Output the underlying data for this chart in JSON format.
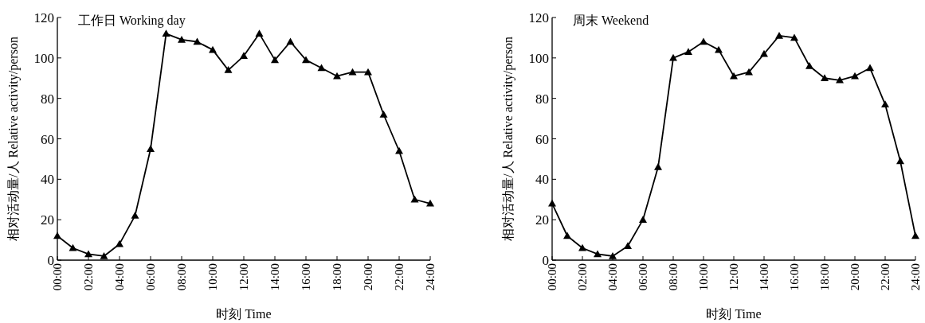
{
  "chart_data": [
    {
      "type": "line",
      "title": "工作日 Working day",
      "xlabel": "时刻 Time",
      "ylabel": "相对活动量/人 Relative activity/person",
      "marker": "triangle",
      "line_style": "solid",
      "x": [
        0,
        1,
        2,
        3,
        4,
        5,
        6,
        7,
        8,
        9,
        10,
        11,
        12,
        13,
        14,
        15,
        16,
        17,
        18,
        19,
        20,
        21,
        22,
        23,
        24
      ],
      "series": [
        {
          "color": "#000000",
          "values": [
            12,
            6,
            3,
            2,
            8,
            22,
            55,
            112,
            109,
            108,
            104,
            94,
            101,
            112,
            99,
            108,
            99,
            95,
            91,
            93,
            93,
            72,
            54,
            30,
            28
          ]
        }
      ],
      "xlim": [
        0,
        24
      ],
      "ylim": [
        0,
        120
      ],
      "xticks": [
        {
          "value": 0,
          "label": "00:00"
        },
        {
          "value": 2,
          "label": "02:00"
        },
        {
          "value": 4,
          "label": "04:00"
        },
        {
          "value": 6,
          "label": "06:00"
        },
        {
          "value": 8,
          "label": "08:00"
        },
        {
          "value": 10,
          "label": "10:00"
        },
        {
          "value": 12,
          "label": "12:00"
        },
        {
          "value": 14,
          "label": "14:00"
        },
        {
          "value": 16,
          "label": "16:00"
        },
        {
          "value": 18,
          "label": "18:00"
        },
        {
          "value": 20,
          "label": "20:00"
        },
        {
          "value": 22,
          "label": "22:00"
        },
        {
          "value": 24,
          "label": "24:00"
        }
      ],
      "yticks": [
        0,
        20,
        40,
        60,
        80,
        100,
        120
      ]
    },
    {
      "type": "line",
      "title": "周末 Weekend",
      "xlabel": "时刻 Time",
      "ylabel": "相对活动量/人 Relative activity/person",
      "marker": "triangle",
      "line_style": "solid",
      "x": [
        0,
        1,
        2,
        3,
        4,
        5,
        6,
        7,
        8,
        9,
        10,
        11,
        12,
        13,
        14,
        15,
        16,
        17,
        18,
        19,
        20,
        21,
        22,
        23,
        24
      ],
      "series": [
        {
          "color": "#000000",
          "values": [
            28,
            12,
            6,
            3,
            2,
            7,
            20,
            46,
            100,
            103,
            108,
            104,
            91,
            93,
            102,
            111,
            110,
            96,
            90,
            89,
            91,
            95,
            77,
            49,
            12
          ]
        }
      ],
      "xlim": [
        0,
        24
      ],
      "ylim": [
        0,
        120
      ],
      "xticks": [
        {
          "value": 0,
          "label": "00:00"
        },
        {
          "value": 2,
          "label": "02:00"
        },
        {
          "value": 4,
          "label": "04:00"
        },
        {
          "value": 6,
          "label": "06:00"
        },
        {
          "value": 8,
          "label": "08:00"
        },
        {
          "value": 10,
          "label": "10:00"
        },
        {
          "value": 12,
          "label": "12:00"
        },
        {
          "value": 14,
          "label": "14:00"
        },
        {
          "value": 16,
          "label": "16:00"
        },
        {
          "value": 18,
          "label": "18:00"
        },
        {
          "value": 20,
          "label": "20:00"
        },
        {
          "value": 22,
          "label": "22:00"
        },
        {
          "value": 24,
          "label": "24:00"
        }
      ],
      "yticks": [
        0,
        20,
        40,
        60,
        80,
        100,
        120
      ]
    }
  ]
}
